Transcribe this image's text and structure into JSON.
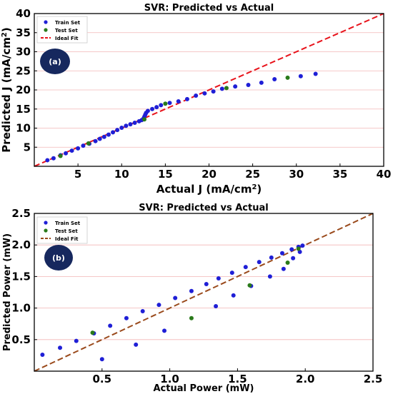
{
  "colors": {
    "train": "#1f1fd6",
    "test": "#2a7a1a",
    "ideal_a": "#e8131b",
    "ideal_b": "#9a4a1c",
    "grid": "#f2b6b6",
    "badge_fill": "#16285e",
    "badge_text": "#ffffff"
  },
  "chart_data": [
    {
      "type": "scatter",
      "panel_label": "(a)",
      "title": "SVR: Predicted vs Actual",
      "xlabel": "Actual J (mA/cm",
      "xlabel_sup": "2",
      "xlabel_end": ")",
      "ylabel": "Predicted J (mA/cm",
      "ylabel_sup": "2",
      "ylabel_end": ")",
      "xlim": [
        0,
        40
      ],
      "ylim": [
        0,
        40
      ],
      "xticks": [
        5,
        10,
        15,
        20,
        25,
        30,
        35,
        40
      ],
      "yticks": [
        5,
        10,
        15,
        20,
        25,
        30,
        35,
        40
      ],
      "grid": true,
      "legend_position": "top-left",
      "legend": [
        "Train Set",
        "Test Set",
        "Ideal Fit"
      ],
      "ideal_fit": [
        [
          0,
          0
        ],
        [
          40,
          40
        ]
      ],
      "series": [
        {
          "name": "Train Set",
          "points": [
            [
              1.5,
              1.6
            ],
            [
              2.2,
              2.1
            ],
            [
              3.0,
              2.9
            ],
            [
              3.6,
              3.4
            ],
            [
              4.3,
              4.1
            ],
            [
              5.0,
              4.7
            ],
            [
              5.6,
              5.4
            ],
            [
              6.3,
              5.9
            ],
            [
              7.0,
              6.6
            ],
            [
              7.5,
              7.2
            ],
            [
              8.0,
              7.7
            ],
            [
              8.5,
              8.3
            ],
            [
              9.0,
              8.9
            ],
            [
              9.5,
              9.5
            ],
            [
              10.0,
              10.1
            ],
            [
              10.5,
              10.6
            ],
            [
              11.0,
              11.0
            ],
            [
              11.5,
              11.4
            ],
            [
              12.0,
              11.8
            ],
            [
              12.3,
              12.1
            ],
            [
              12.5,
              12.5
            ],
            [
              12.6,
              13.0
            ],
            [
              12.7,
              13.5
            ],
            [
              12.8,
              14.0
            ],
            [
              13.0,
              14.5
            ],
            [
              13.5,
              15.0
            ],
            [
              14.0,
              15.5
            ],
            [
              14.5,
              16.0
            ],
            [
              15.5,
              16.6
            ],
            [
              16.5,
              17.0
            ],
            [
              17.5,
              17.6
            ],
            [
              18.5,
              18.5
            ],
            [
              19.5,
              19.1
            ],
            [
              20.5,
              19.6
            ],
            [
              21.5,
              20.3
            ],
            [
              23.0,
              20.9
            ],
            [
              24.5,
              21.3
            ],
            [
              26.0,
              21.9
            ],
            [
              27.5,
              22.8
            ],
            [
              30.5,
              23.6
            ],
            [
              32.2,
              24.2
            ]
          ]
        },
        {
          "name": "Test Set",
          "points": [
            [
              3.0,
              2.7
            ],
            [
              6.2,
              6.0
            ],
            [
              12.6,
              12.3
            ],
            [
              15.0,
              16.4
            ],
            [
              22.0,
              20.5
            ],
            [
              29.0,
              23.2
            ]
          ]
        }
      ]
    },
    {
      "type": "scatter",
      "panel_label": "(b)",
      "title": "SVR: Predicted vs Actual",
      "xlabel": "Actual Power (mW)",
      "ylabel": "Predicted Power (mW)",
      "xlim": [
        0,
        2.5
      ],
      "ylim": [
        0,
        2.5
      ],
      "xticks": [
        "0.5",
        "1.0",
        "1.5",
        "2.0",
        "2.5"
      ],
      "yticks": [
        "0.5",
        "1.0",
        "1.5",
        "2.0",
        "2.5"
      ],
      "grid": true,
      "legend_position": "top-left",
      "legend": [
        "Train Set",
        "Test Set",
        "Ideal Fit"
      ],
      "ideal_fit": [
        [
          0,
          0
        ],
        [
          2.5,
          2.5
        ]
      ],
      "series": [
        {
          "name": "Train Set",
          "points": [
            [
              0.06,
              0.26
            ],
            [
              0.19,
              0.37
            ],
            [
              0.31,
              0.48
            ],
            [
              0.44,
              0.6
            ],
            [
              0.56,
              0.72
            ],
            [
              0.68,
              0.84
            ],
            [
              0.8,
              0.95
            ],
            [
              0.92,
              1.05
            ],
            [
              1.04,
              1.16
            ],
            [
              1.16,
              1.27
            ],
            [
              1.27,
              1.38
            ],
            [
              1.36,
              1.47
            ],
            [
              1.46,
              1.56
            ],
            [
              1.56,
              1.65
            ],
            [
              1.66,
              1.73
            ],
            [
              1.75,
              1.8
            ],
            [
              1.83,
              1.87
            ],
            [
              1.9,
              1.93
            ],
            [
              1.95,
              1.97
            ],
            [
              1.98,
              1.99
            ],
            [
              0.5,
              0.19
            ],
            [
              0.75,
              0.42
            ],
            [
              0.96,
              0.64
            ],
            [
              1.34,
              1.03
            ],
            [
              1.47,
              1.2
            ],
            [
              1.6,
              1.35
            ],
            [
              1.74,
              1.5
            ],
            [
              1.84,
              1.62
            ],
            [
              1.91,
              1.79
            ],
            [
              1.96,
              1.89
            ]
          ]
        },
        {
          "name": "Test Set",
          "points": [
            [
              0.43,
              0.61
            ],
            [
              1.16,
              0.84
            ],
            [
              1.59,
              1.36
            ],
            [
              1.87,
              1.72
            ],
            [
              1.95,
              1.94
            ]
          ]
        }
      ]
    }
  ]
}
